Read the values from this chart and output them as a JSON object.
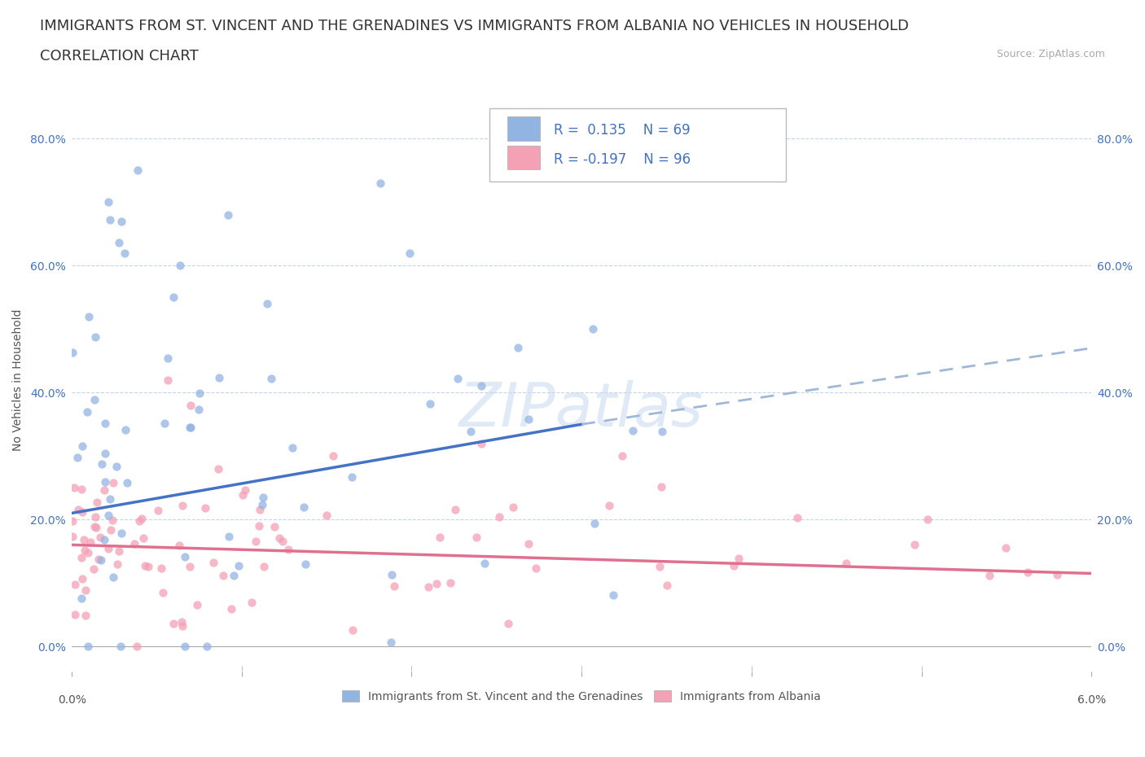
{
  "title_line1": "IMMIGRANTS FROM ST. VINCENT AND THE GRENADINES VS IMMIGRANTS FROM ALBANIA NO VEHICLES IN HOUSEHOLD",
  "title_line2": "CORRELATION CHART",
  "source": "Source: ZipAtlas.com",
  "ylabel": "No Vehicles in Household",
  "xlim": [
    0.0,
    6.0
  ],
  "ylim": [
    -4.0,
    88.0
  ],
  "yticks": [
    0.0,
    20.0,
    40.0,
    60.0,
    80.0
  ],
  "series1_name": "Immigrants from St. Vincent and the Grenadines",
  "series1_color": "#92b4e3",
  "series1_line_color": "#4472c4",
  "series1_R": 0.135,
  "series1_N": 69,
  "series2_name": "Immigrants from Albania",
  "series2_color": "#f4a0b5",
  "series2_line_color": "#e07090",
  "series2_R": -0.197,
  "series2_N": 96,
  "watermark": "ZIPatlas",
  "title_fontsize": 13,
  "subtitle_fontsize": 13,
  "axis_label_fontsize": 10,
  "tick_fontsize": 10,
  "legend_fontsize": 12,
  "blue_line_x0": 0.0,
  "blue_line_y0": 21.0,
  "blue_line_x1": 3.0,
  "blue_line_y1": 35.0,
  "dashed_line_x0": 3.0,
  "dashed_line_y0": 35.0,
  "dashed_line_x1": 6.0,
  "dashed_line_y1": 47.0,
  "pink_line_x0": 0.0,
  "pink_line_y0": 16.0,
  "pink_line_x1": 6.0,
  "pink_line_y1": 11.5
}
